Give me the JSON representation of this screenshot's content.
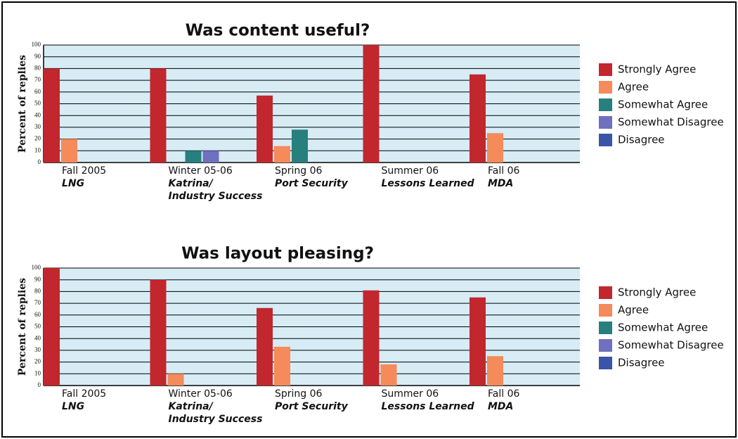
{
  "chart_data": [
    {
      "type": "bar",
      "title": "Was content useful?",
      "y_label": "Percent of replies",
      "categories": [
        "Fall 2005",
        "Winter 05-06",
        "Spring 06",
        "Summer 06",
        "Fall 06"
      ],
      "category_topics": [
        [
          "LNG"
        ],
        [
          "Katrina/",
          "Industry Success"
        ],
        [
          "Port Security"
        ],
        [
          "Lessons Learned"
        ],
        [
          "MDA"
        ]
      ],
      "series": [
        {
          "name": "Strongly Agree",
          "color": "#c1272d",
          "values": [
            80,
            80,
            57,
            100,
            75
          ]
        },
        {
          "name": "Agree",
          "color": "#f58a5a",
          "values": [
            20,
            0,
            14,
            0,
            25
          ]
        },
        {
          "name": "Somewhat Agree",
          "color": "#27807d",
          "values": [
            0,
            10,
            28,
            0,
            0
          ]
        },
        {
          "name": "Somewhat Disagree",
          "color": "#7070c0",
          "values": [
            0,
            10,
            0,
            0,
            0
          ]
        },
        {
          "name": "Disagree",
          "color": "#3a55a8",
          "values": [
            0,
            0,
            0,
            0,
            0
          ]
        }
      ],
      "ylim": [
        0,
        100
      ],
      "yticks": [
        0,
        10,
        20,
        30,
        40,
        50,
        60,
        70,
        80,
        90,
        100
      ],
      "grid": true,
      "legend": "right"
    },
    {
      "type": "bar",
      "title": "Was layout pleasing?",
      "y_label": "Percent of replies",
      "categories": [
        "Fall 2005",
        "Winter 05-06",
        "Spring 06",
        "Summer 06",
        "Fall 06"
      ],
      "category_topics": [
        [
          "LNG"
        ],
        [
          "Katrina/",
          "Industry Success"
        ],
        [
          "Port Security"
        ],
        [
          "Lessons Learned"
        ],
        [
          "MDA"
        ]
      ],
      "series": [
        {
          "name": "Strongly Agree",
          "color": "#c1272d",
          "values": [
            100,
            90,
            66,
            81,
            75
          ]
        },
        {
          "name": "Agree",
          "color": "#f58a5a",
          "values": [
            0,
            10,
            33,
            18,
            25
          ]
        },
        {
          "name": "Somewhat Agree",
          "color": "#27807d",
          "values": [
            0,
            0,
            0,
            0,
            0
          ]
        },
        {
          "name": "Somewhat Disagree",
          "color": "#7070c0",
          "values": [
            0,
            0,
            0,
            0,
            0
          ]
        },
        {
          "name": "Disagree",
          "color": "#3a55a8",
          "values": [
            0,
            0,
            0,
            0,
            0
          ]
        }
      ],
      "ylim": [
        0,
        100
      ],
      "yticks": [
        0,
        10,
        20,
        30,
        40,
        50,
        60,
        70,
        80,
        90,
        100
      ],
      "grid": true,
      "legend": "right"
    }
  ]
}
